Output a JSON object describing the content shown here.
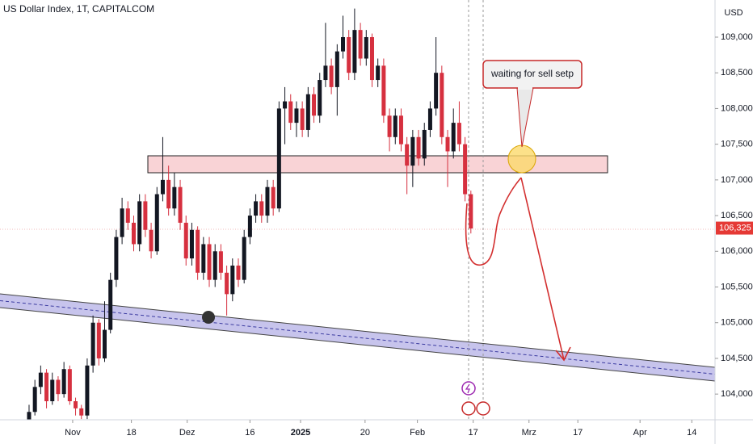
{
  "chart_data": {
    "type": "candlestick",
    "title": "US Dollar Index, 1T, CAPITALCOM",
    "currency": "USD",
    "up_color": "#131722",
    "down_color": "#d6303f",
    "open": [
      103.6,
      103.75,
      104.1,
      104.3,
      103.9,
      104.2,
      104.0,
      104.35,
      103.9,
      103.8,
      103.7,
      104.4,
      105.0,
      104.5,
      104.9,
      105.6,
      106.2,
      106.6,
      106.4,
      106.1,
      106.7,
      106.3,
      106.0,
      106.8,
      107.0,
      106.6,
      106.9,
      106.4,
      105.9,
      106.3,
      105.7,
      106.1,
      105.6,
      106.0,
      105.7,
      105.4,
      105.8,
      105.6,
      106.2,
      106.5,
      106.7,
      106.5,
      106.9,
      106.6,
      108.0,
      108.1,
      107.8,
      108.0,
      107.7,
      108.2,
      107.9,
      108.4,
      108.6,
      108.3,
      108.8,
      109.0,
      108.5,
      109.1,
      108.7,
      109.0,
      108.4,
      108.6,
      107.9,
      107.6,
      107.9,
      107.5,
      107.2,
      107.6,
      107.3,
      107.7,
      108.0,
      108.5,
      107.6,
      107.4,
      107.8,
      107.5,
      106.8
    ],
    "high": [
      103.85,
      104.2,
      104.4,
      104.35,
      104.3,
      104.25,
      104.45,
      104.4,
      103.95,
      103.85,
      104.5,
      105.1,
      105.05,
      105.3,
      105.7,
      106.3,
      106.75,
      106.7,
      106.5,
      106.8,
      106.8,
      106.4,
      106.9,
      107.6,
      107.2,
      107.1,
      107.0,
      106.5,
      106.4,
      106.35,
      106.2,
      106.2,
      106.1,
      106.1,
      105.8,
      105.9,
      105.9,
      106.3,
      106.6,
      106.8,
      106.8,
      107.0,
      107.0,
      108.1,
      108.3,
      108.2,
      108.1,
      108.1,
      108.3,
      108.3,
      108.5,
      109.2,
      108.7,
      108.9,
      109.3,
      109.1,
      109.4,
      109.2,
      109.1,
      109.05,
      108.7,
      108.7,
      108.0,
      108.0,
      108.0,
      107.6,
      107.7,
      107.7,
      107.8,
      108.1,
      109.0,
      108.6,
      107.7,
      108.0,
      108.1,
      107.6,
      106.85
    ],
    "low": [
      103.5,
      103.7,
      104.0,
      103.8,
      103.85,
      103.9,
      103.95,
      103.85,
      103.7,
      103.65,
      103.65,
      104.3,
      104.4,
      104.45,
      104.85,
      105.5,
      106.1,
      106.3,
      106.0,
      106.0,
      106.2,
      105.9,
      105.95,
      106.7,
      106.5,
      106.5,
      106.3,
      105.8,
      105.8,
      105.6,
      105.6,
      105.5,
      105.5,
      105.6,
      105.1,
      105.3,
      105.5,
      105.55,
      106.1,
      106.4,
      106.4,
      106.4,
      106.5,
      106.55,
      107.5,
      107.7,
      107.6,
      107.6,
      107.6,
      107.8,
      107.8,
      108.3,
      108.2,
      107.9,
      108.7,
      108.4,
      108.4,
      108.6,
      108.6,
      108.3,
      108.3,
      107.8,
      107.4,
      107.5,
      107.4,
      106.8,
      106.9,
      107.2,
      107.2,
      107.6,
      107.9,
      107.5,
      106.9,
      107.3,
      107.4,
      106.7,
      106.25
    ],
    "close": [
      103.75,
      104.1,
      104.3,
      103.9,
      104.2,
      104.0,
      104.35,
      103.9,
      103.8,
      103.7,
      104.4,
      105.0,
      104.5,
      104.9,
      105.6,
      106.2,
      106.6,
      106.4,
      106.1,
      106.7,
      106.3,
      106.0,
      106.8,
      107.0,
      106.6,
      106.9,
      106.4,
      105.9,
      106.3,
      105.7,
      106.1,
      105.6,
      106.0,
      105.7,
      105.4,
      105.8,
      105.6,
      106.2,
      106.5,
      106.7,
      106.5,
      106.9,
      106.6,
      108.0,
      108.1,
      107.8,
      108.0,
      107.7,
      108.2,
      107.9,
      108.4,
      108.6,
      108.3,
      108.8,
      109.0,
      108.5,
      109.1,
      108.7,
      109.0,
      108.4,
      108.6,
      107.9,
      107.6,
      107.9,
      107.5,
      107.2,
      107.6,
      107.3,
      107.7,
      108.0,
      108.5,
      107.6,
      107.4,
      107.8,
      107.5,
      106.8,
      106.32
    ],
    "last_price": {
      "value": 106.325,
      "label": "106,325"
    },
    "xlim": [
      -5,
      118
    ],
    "ylim": [
      103.64,
      109.52
    ],
    "xticks": [
      {
        "value": 7.5,
        "label": "Nov"
      },
      {
        "value": 17.6,
        "label": "18"
      },
      {
        "value": 27.2,
        "label": "Dez"
      },
      {
        "value": 38,
        "label": "16"
      },
      {
        "value": 46.7,
        "label": "2025"
      },
      {
        "value": 57.8,
        "label": "20"
      },
      {
        "value": 66.8,
        "label": "Feb"
      },
      {
        "value": 76.4,
        "label": "17"
      },
      {
        "value": 86,
        "label": "Mrz"
      },
      {
        "value": 94.4,
        "label": "17"
      },
      {
        "value": 105.1,
        "label": "Apr"
      },
      {
        "value": 114,
        "label": "14"
      }
    ],
    "yticks": [
      {
        "value": 104,
        "label": "104,000"
      },
      {
        "value": 104.5,
        "label": "104,500"
      },
      {
        "value": 105,
        "label": "105,000"
      },
      {
        "value": 105.5,
        "label": "105,500"
      },
      {
        "value": 106,
        "label": "106,000"
      },
      {
        "value": 106.5,
        "label": "106,500"
      },
      {
        "value": 107,
        "label": "107,000"
      },
      {
        "value": 107.5,
        "label": "107,500"
      },
      {
        "value": 108,
        "label": "108,000"
      },
      {
        "value": 108.5,
        "label": "108,500"
      },
      {
        "value": 109,
        "label": "109,000"
      }
    ],
    "annotation": "waiting for sell setp"
  }
}
